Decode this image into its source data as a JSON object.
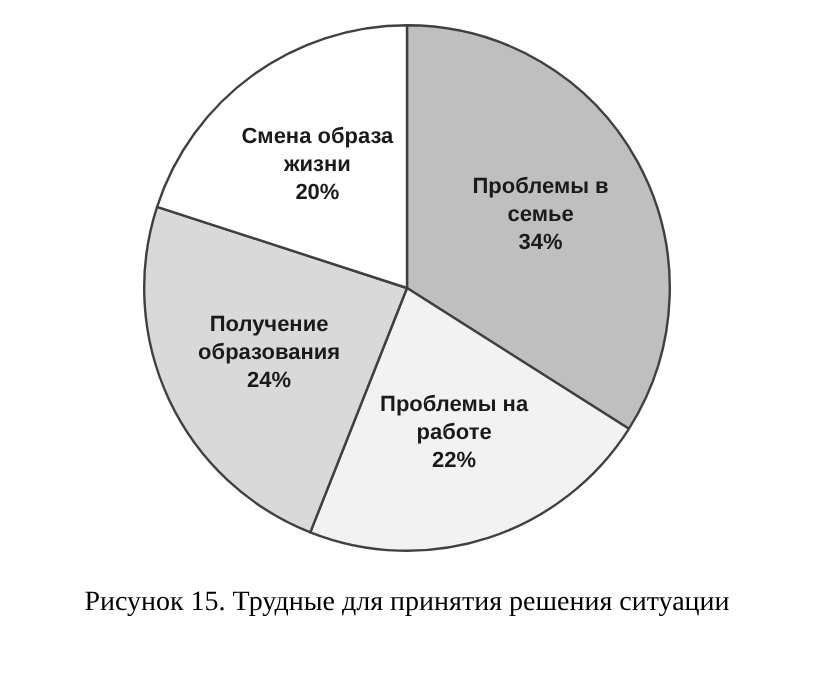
{
  "chart_data": {
    "type": "pie",
    "categories": [
      "Проблемы в семье",
      "Проблемы на работе",
      "Получение образования",
      "Смена образа жизни"
    ],
    "values": [
      34,
      22,
      24,
      20
    ],
    "colors": [
      "#bfbfbf",
      "#f2f2f2",
      "#d9d9d9",
      "#ffffff"
    ],
    "value_labels": [
      "34%",
      "22%",
      "24%",
      "20%"
    ],
    "legend": false,
    "annotations": [
      "Рисунок 15. Трудные для принятия решения ситуации"
    ]
  }
}
